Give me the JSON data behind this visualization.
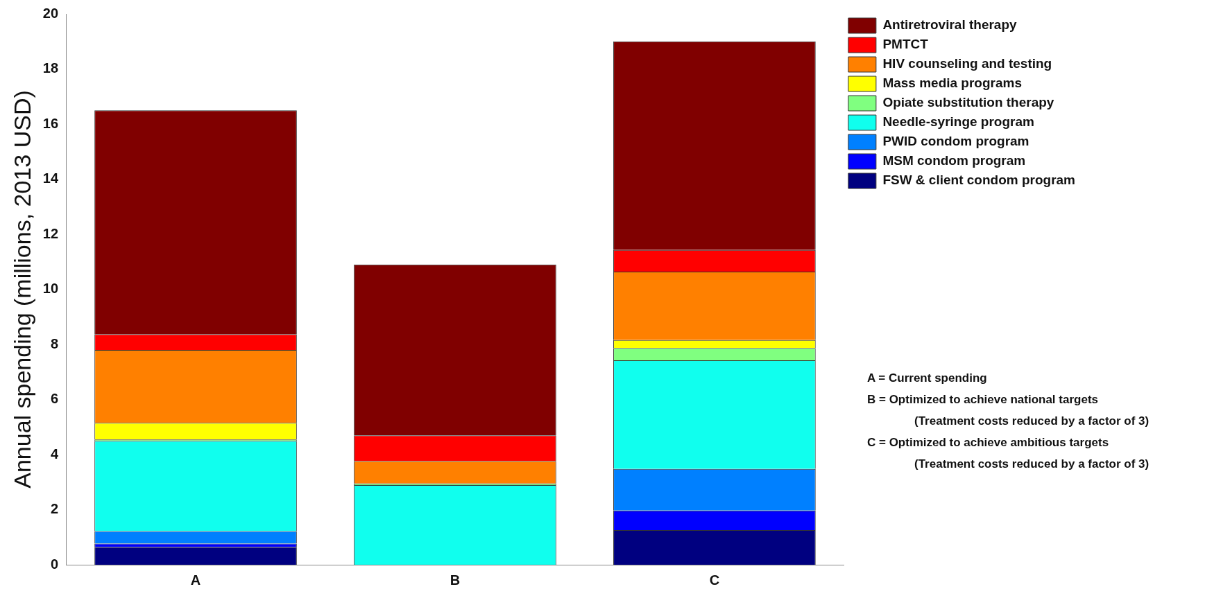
{
  "chart_data": {
    "type": "bar",
    "stacked": true,
    "ylabel": "Annual spending (millions, 2013 USD)",
    "categories": [
      "A",
      "B",
      "C"
    ],
    "ylim": [
      0,
      20
    ],
    "yticks": [
      0,
      2,
      4,
      6,
      8,
      10,
      12,
      14,
      16,
      18,
      20
    ],
    "grid": false,
    "legend": "top right",
    "series": [
      {
        "name": "FSW & client condom program",
        "color": "#000080",
        "values": [
          0.65,
          0,
          1.26
        ]
      },
      {
        "name": "MSM condom program",
        "color": "#0000ff",
        "values": [
          0.12,
          0,
          0.71
        ]
      },
      {
        "name": "PWID condom program",
        "color": "#0080ff",
        "values": [
          0.45,
          0,
          1.51
        ]
      },
      {
        "name": "Needle-syringe program",
        "color": "#10ffee",
        "values": [
          3.28,
          2.89,
          3.94
        ]
      },
      {
        "name": "Opiate substitution therapy",
        "color": "#80ff80",
        "values": [
          0.05,
          0.06,
          0.45
        ]
      },
      {
        "name": "Mass media programs",
        "color": "#ffff00",
        "values": [
          0.6,
          0,
          0.29
        ]
      },
      {
        "name": "HIV counseling and testing",
        "color": "#ff8000",
        "values": [
          2.65,
          0.82,
          2.48
        ]
      },
      {
        "name": "PMTCT",
        "color": "#ff0000",
        "values": [
          0.57,
          0.93,
          0.79
        ]
      },
      {
        "name": "Antiretroviral therapy",
        "color": "#800000",
        "values": [
          8.13,
          6.2,
          7.57
        ]
      }
    ],
    "annotations": [
      "A = Current spending",
      "B = Optimized to achieve national targets",
      "(Treatment costs reduced by a factor of 3)",
      "C = Optimized to achieve ambitious targets",
      "(Treatment costs reduced by a factor of 3)"
    ]
  }
}
